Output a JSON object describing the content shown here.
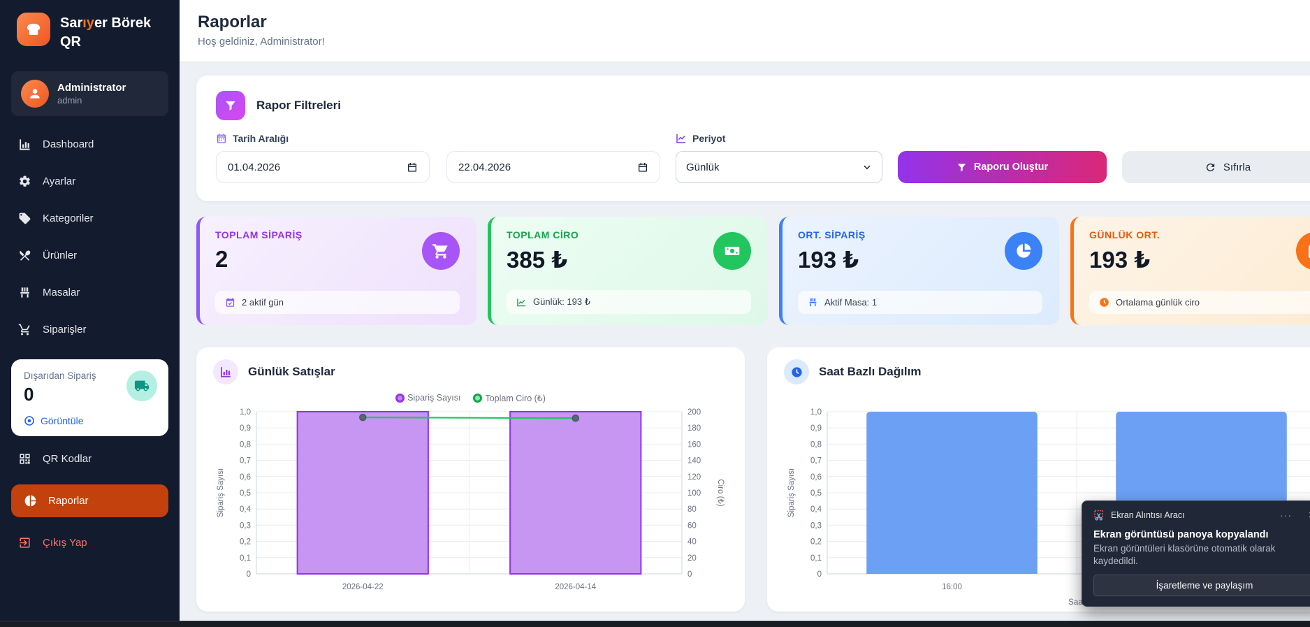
{
  "brand": {
    "pre": "Sar",
    "accent": "ıy",
    "post": "er Börek",
    "line2": "QR"
  },
  "user": {
    "name": "Administrator",
    "role": "admin"
  },
  "sidebar": {
    "items": [
      {
        "label": "Dashboard"
      },
      {
        "label": "Ayarlar"
      },
      {
        "label": "Kategoriler"
      },
      {
        "label": "Ürünler"
      },
      {
        "label": "Masalar"
      },
      {
        "label": "Siparişler"
      }
    ],
    "external_card": {
      "title": "Dışarıdan Sipariş",
      "count": "0",
      "link": "Görüntüle"
    },
    "qr_label": "QR Kodlar",
    "reports_label": "Raporlar",
    "logout_label": "Çıkış Yap"
  },
  "header": {
    "title": "Raporlar",
    "subtitle": "Hoş geldiniz, Administrator!"
  },
  "filters": {
    "title": "Rapor Filtreleri",
    "date_label": "Tarih Aralığı",
    "date_from": "01.04.2026",
    "date_to": "22.04.2026",
    "period_label": "Periyot",
    "period_value": "Günlük",
    "generate_label": "Raporu Oluştur",
    "reset_label": "Sıfırla"
  },
  "stats": {
    "cards": [
      {
        "label": "TOPLAM SİPARİŞ",
        "value": "2",
        "footer": "2 aktif gün",
        "accent": "#9333ea"
      },
      {
        "label": "TOPLAM CİRO",
        "value": "385 ₺",
        "footer": "Günlük: 193 ₺",
        "accent": "#16a34a"
      },
      {
        "label": "ORT. SİPARİŞ",
        "value": "193 ₺",
        "footer": "Aktif Masa: 1",
        "accent": "#2563eb"
      },
      {
        "label": "GÜNLÜK ORT.",
        "value": "193 ₺",
        "footer": "Ortalama günlük ciro",
        "accent": "#ea580c"
      }
    ]
  },
  "chart_data": [
    {
      "type": "bar",
      "title": "Günlük Satışlar",
      "categories": [
        "2026-04-22",
        "2026-04-14"
      ],
      "series": [
        {
          "name": "Sipariş Sayısı",
          "kind": "bar",
          "values": [
            1,
            1
          ],
          "color": "#c795f2",
          "border": "#9333ea"
        },
        {
          "name": "Toplam Ciro (₺)",
          "kind": "line",
          "values": [
            193,
            192
          ],
          "color": "#22c55e",
          "marker": "#5b6573"
        }
      ],
      "left_axis": {
        "label": "Sipariş Sayısı",
        "min": 0,
        "max": 1,
        "ticks": [
          "1,0",
          "0,9",
          "0,8",
          "0,7",
          "0,6",
          "0,5",
          "0,4",
          "0,3",
          "0,2",
          "0,1",
          "0"
        ]
      },
      "right_axis": {
        "label": "Ciro (₺)",
        "min": 0,
        "max": 200,
        "ticks": [
          "200",
          "180",
          "160",
          "140",
          "120",
          "100",
          "80",
          "60",
          "40",
          "20",
          "0"
        ]
      },
      "legend_position": "top",
      "grid": true
    },
    {
      "type": "bar",
      "title": "Saat Bazlı Dağılım",
      "categories": [
        "16:00",
        ""
      ],
      "series": [
        {
          "name": "Sipariş Sayısı",
          "kind": "bar",
          "values": [
            1,
            1
          ],
          "color": "#6ba0f4"
        }
      ],
      "left_axis": {
        "label": "Sipariş Sayısı",
        "min": 0,
        "max": 1,
        "ticks": [
          "1,0",
          "0,9",
          "0,8",
          "0,7",
          "0,6",
          "0,5",
          "0,4",
          "0,3",
          "0,2",
          "0,1",
          "0"
        ]
      },
      "xlabel": "Saat",
      "grid": true
    }
  ],
  "notification": {
    "app": "Ekran Alıntısı Aracı",
    "more": "···",
    "close": "✕",
    "title": "Ekran görüntüsü panoya kopyalandı",
    "body": "Ekran görüntüleri klasörüne otomatik olarak kaydedildi.",
    "action": "İşaretleme ve paylaşım"
  }
}
